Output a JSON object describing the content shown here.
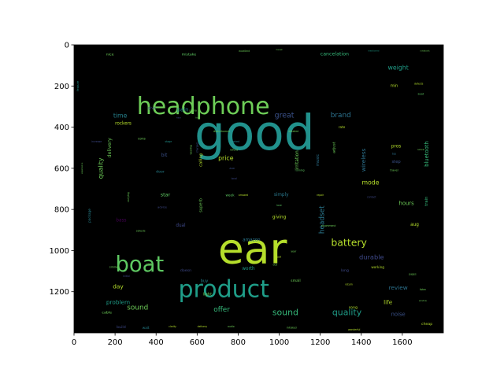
{
  "chart_data": {
    "type": "wordcloud",
    "x_ticks": [
      0,
      200,
      400,
      600,
      800,
      1000,
      1200,
      1400,
      1600
    ],
    "y_ticks": [
      0,
      200,
      400,
      600,
      800,
      1000,
      1200
    ],
    "xlim": [
      0,
      1800
    ],
    "ylim": [
      1400,
      0
    ],
    "background": "#000000",
    "words": [
      {
        "text": "good",
        "x": 880,
        "y": 430,
        "size": 235,
        "color": "#21918c"
      },
      {
        "text": "ear",
        "x": 870,
        "y": 990,
        "size": 205,
        "color": "#b5de2b"
      },
      {
        "text": "headphone",
        "x": 630,
        "y": 300,
        "size": 115,
        "color": "#6ece58"
      },
      {
        "text": "product",
        "x": 730,
        "y": 1190,
        "size": 115,
        "color": "#1f9e89"
      },
      {
        "text": "boat",
        "x": 320,
        "y": 1070,
        "size": 105,
        "color": "#5ec962"
      },
      {
        "text": "battery",
        "x": 1340,
        "y": 960,
        "size": 48,
        "color": "#b5de2b"
      },
      {
        "text": "quality",
        "x": 1330,
        "y": 1300,
        "size": 42,
        "color": "#1f9e89"
      },
      {
        "text": "sound",
        "x": 1030,
        "y": 1300,
        "size": 42,
        "color": "#35b779"
      },
      {
        "text": "sound",
        "x": 310,
        "y": 1280,
        "size": 34,
        "color": "#6ece58"
      },
      {
        "text": "offer",
        "x": 720,
        "y": 1290,
        "size": 34,
        "color": "#35b779"
      },
      {
        "text": "great",
        "x": 1025,
        "y": 345,
        "size": 36,
        "color": "#3b528b"
      },
      {
        "text": "brand",
        "x": 1300,
        "y": 345,
        "size": 34,
        "color": "#2c728e"
      },
      {
        "text": "time",
        "x": 225,
        "y": 345,
        "size": 30,
        "color": "#26828e"
      },
      {
        "text": "weight",
        "x": 1580,
        "y": 110,
        "size": 30,
        "color": "#1f9e89"
      },
      {
        "text": "cancelation",
        "x": 1270,
        "y": 45,
        "size": 24,
        "color": "#35b779"
      },
      {
        "text": "durable",
        "x": 1450,
        "y": 1030,
        "size": 32,
        "color": "#3e4989"
      },
      {
        "text": "headset",
        "x": 1210,
        "y": 850,
        "size": 34,
        "color": "#2a788e",
        "rotate": -90
      },
      {
        "text": "quality",
        "x": 130,
        "y": 600,
        "size": 30,
        "color": "#6ece58",
        "rotate": -90
      },
      {
        "text": "price",
        "x": 740,
        "y": 550,
        "size": 30,
        "color": "#b5de2b"
      },
      {
        "text": "mode",
        "x": 1445,
        "y": 670,
        "size": 30,
        "color": "#b5de2b"
      },
      {
        "text": "wireless",
        "x": 1410,
        "y": 560,
        "size": 28,
        "color": "#2c728e",
        "rotate": -90
      },
      {
        "text": "bluetooth",
        "x": 1720,
        "y": 530,
        "size": 26,
        "color": "#35b779",
        "rotate": -90
      },
      {
        "text": "day",
        "x": 215,
        "y": 1175,
        "size": 28,
        "color": "#b5de2b"
      },
      {
        "text": "problem",
        "x": 215,
        "y": 1250,
        "size": 28,
        "color": "#1f9e89"
      },
      {
        "text": "review",
        "x": 1580,
        "y": 1180,
        "size": 28,
        "color": "#2c728e"
      },
      {
        "text": "life",
        "x": 1530,
        "y": 1250,
        "size": 28,
        "color": "#b5de2b"
      },
      {
        "text": "noise",
        "x": 1580,
        "y": 1310,
        "size": 26,
        "color": "#3b528b"
      },
      {
        "text": "hours",
        "x": 1620,
        "y": 770,
        "size": 26,
        "color": "#6ece58"
      },
      {
        "text": "amazon",
        "x": 865,
        "y": 950,
        "size": 22,
        "color": "#2a788e"
      },
      {
        "text": "pain",
        "x": 530,
        "y": 315,
        "size": 26,
        "color": "#26828e"
      },
      {
        "text": "delivery",
        "x": 175,
        "y": 500,
        "size": 24,
        "color": "#6ece58",
        "rotate": -90
      },
      {
        "text": "rockers",
        "x": 240,
        "y": 385,
        "size": 22,
        "color": "#b5de2b"
      },
      {
        "text": "star",
        "x": 445,
        "y": 730,
        "size": 24,
        "color": "#5ec962"
      },
      {
        "text": "bit",
        "x": 440,
        "y": 540,
        "size": 22,
        "color": "#3b528b"
      },
      {
        "text": "bass",
        "x": 230,
        "y": 855,
        "size": 22,
        "color": "#440154"
      },
      {
        "text": "dual",
        "x": 520,
        "y": 880,
        "size": 22,
        "color": "#3e4989"
      },
      {
        "text": "worth",
        "x": 850,
        "y": 1090,
        "size": 22,
        "color": "#1f9e89"
      },
      {
        "text": "giving",
        "x": 1000,
        "y": 840,
        "size": 22,
        "color": "#b5de2b"
      },
      {
        "text": "simply",
        "x": 1010,
        "y": 730,
        "size": 22,
        "color": "#2a788e"
      },
      {
        "text": "irritation",
        "x": 1090,
        "y": 560,
        "size": 22,
        "color": "#6ece58",
        "rotate": -90
      },
      {
        "text": "music",
        "x": 1190,
        "y": 560,
        "size": 20,
        "color": "#2c728e",
        "rotate": -90
      },
      {
        "text": "pros",
        "x": 1570,
        "y": 495,
        "size": 22,
        "color": "#b5de2b"
      },
      {
        "text": "step",
        "x": 1570,
        "y": 570,
        "size": 20,
        "color": "#3b528b"
      },
      {
        "text": "train",
        "x": 1720,
        "y": 760,
        "size": 20,
        "color": "#35b779",
        "rotate": -90
      },
      {
        "text": "aug",
        "x": 1660,
        "y": 875,
        "size": 22,
        "color": "#b5de2b"
      },
      {
        "text": "mistake",
        "x": 560,
        "y": 50,
        "size": 18,
        "color": "#5ec962"
      },
      {
        "text": "nice",
        "x": 175,
        "y": 50,
        "size": 18,
        "color": "#6ece58"
      },
      {
        "text": "min",
        "x": 1560,
        "y": 200,
        "size": 20,
        "color": "#b5de2b"
      },
      {
        "text": "calling",
        "x": 620,
        "y": 560,
        "size": 20,
        "color": "#b5de2b",
        "rotate": -90
      },
      {
        "text": "superb",
        "x": 620,
        "y": 780,
        "size": 20,
        "color": "#6ece58",
        "rotate": -90
      },
      {
        "text": "light",
        "x": 650,
        "y": 1215,
        "size": 20,
        "color": "#6ece58"
      },
      {
        "text": "buy",
        "x": 635,
        "y": 1150,
        "size": 20,
        "color": "#26828e"
      },
      {
        "text": "doesn",
        "x": 545,
        "y": 1100,
        "size": 18,
        "color": "#3e4989"
      },
      {
        "text": "door",
        "x": 420,
        "y": 620,
        "size": 18,
        "color": "#26828e"
      },
      {
        "text": "give",
        "x": 380,
        "y": 310,
        "size": 18,
        "color": "#3e4989"
      },
      {
        "text": "cons",
        "x": 330,
        "y": 455,
        "size": 16,
        "color": "#6ece58"
      },
      {
        "text": "package",
        "x": 75,
        "y": 830,
        "size": 16,
        "color": "#26828e",
        "rotate": -90
      },
      {
        "text": "feature",
        "x": 20,
        "y": 200,
        "size": 14,
        "color": "#21918c",
        "rotate": -90
      },
      {
        "text": "adjust",
        "x": 1270,
        "y": 500,
        "size": 18,
        "color": "#6ece58",
        "rotate": -90
      },
      {
        "text": "rate",
        "x": 1305,
        "y": 400,
        "size": 16,
        "color": "#b5de2b"
      },
      {
        "text": "long",
        "x": 1320,
        "y": 1100,
        "size": 18,
        "color": "#3e4989"
      },
      {
        "text": "working",
        "x": 1480,
        "y": 1080,
        "size": 16,
        "color": "#b5de2b"
      },
      {
        "text": "song",
        "x": 1360,
        "y": 1280,
        "size": 18,
        "color": "#b5de2b"
      },
      {
        "text": "cheap",
        "x": 1720,
        "y": 1360,
        "size": 18,
        "color": "#b5de2b"
      },
      {
        "text": "build",
        "x": 230,
        "y": 1375,
        "size": 18,
        "color": "#3e4989"
      },
      {
        "text": "wait",
        "x": 350,
        "y": 1375,
        "size": 16,
        "color": "#26828e"
      },
      {
        "text": "small",
        "x": 1080,
        "y": 1150,
        "size": 18,
        "color": "#6ece58"
      },
      {
        "text": "cable",
        "x": 160,
        "y": 1305,
        "size": 18,
        "color": "#6ece58"
      },
      {
        "text": "advice",
        "x": 430,
        "y": 790,
        "size": 14,
        "color": "#3e4989"
      },
      {
        "text": "week",
        "x": 760,
        "y": 730,
        "size": 16,
        "color": "#5ec962"
      },
      {
        "text": "disturbance",
        "x": 720,
        "y": 420,
        "size": 14,
        "color": "#6ece58"
      },
      {
        "text": "detailed",
        "x": 1070,
        "y": 420,
        "size": 12,
        "color": "#6ece58"
      },
      {
        "text": "excellent",
        "x": 830,
        "y": 30,
        "size": 12,
        "color": "#6ece58"
      },
      {
        "text": "mentioned",
        "x": 1460,
        "y": 30,
        "size": 10,
        "color": "#1f9e89"
      },
      {
        "text": "notebook",
        "x": 1710,
        "y": 30,
        "size": 10,
        "color": "#6ece58"
      },
      {
        "text": "seat",
        "x": 1690,
        "y": 240,
        "size": 14,
        "color": "#5ec962"
      },
      {
        "text": "defects",
        "x": 1680,
        "y": 190,
        "size": 12,
        "color": "#b5de2b"
      },
      {
        "text": "aux",
        "x": 770,
        "y": 600,
        "size": 14,
        "color": "#3b528b"
      },
      {
        "text": "refund",
        "x": 780,
        "y": 510,
        "size": 12,
        "color": "#6ece58"
      },
      {
        "text": "wired",
        "x": 790,
        "y": 470,
        "size": 12,
        "color": "#26828e"
      },
      {
        "text": "local",
        "x": 780,
        "y": 650,
        "size": 12,
        "color": "#3e4989"
      },
      {
        "text": "stage",
        "x": 460,
        "y": 470,
        "size": 12,
        "color": "#21918c"
      },
      {
        "text": "charged",
        "x": 600,
        "y": 500,
        "size": 12,
        "color": "#3b528b",
        "rotate": -90
      },
      {
        "text": "wearing",
        "x": 570,
        "y": 510,
        "size": 12,
        "color": "#6ece58",
        "rotate": -90
      },
      {
        "text": "amazed",
        "x": 825,
        "y": 730,
        "size": 12,
        "color": "#b5de2b"
      },
      {
        "text": "love",
        "x": 1000,
        "y": 780,
        "size": 12,
        "color": "#5ec962"
      },
      {
        "text": "repair",
        "x": 1200,
        "y": 730,
        "size": 12,
        "color": "#b5de2b"
      },
      {
        "text": "contact",
        "x": 1450,
        "y": 740,
        "size": 12,
        "color": "#3e4989"
      },
      {
        "text": "recommend",
        "x": 1240,
        "y": 880,
        "size": 12,
        "color": "#6ece58"
      },
      {
        "text": "running",
        "x": 1100,
        "y": 610,
        "size": 12,
        "color": "#5ec962"
      },
      {
        "text": "travel",
        "x": 1560,
        "y": 610,
        "size": 14,
        "color": "#6ece58"
      },
      {
        "text": "top",
        "x": 1560,
        "y": 530,
        "size": 12,
        "color": "#2c728e"
      },
      {
        "text": "collects",
        "x": 325,
        "y": 905,
        "size": 12,
        "color": "#6ece58"
      },
      {
        "text": "carrying",
        "x": 265,
        "y": 740,
        "size": 12,
        "color": "#6ece58",
        "rotate": -90
      },
      {
        "text": "similar",
        "x": 195,
        "y": 1080,
        "size": 14,
        "color": "#6ece58"
      },
      {
        "text": "cost",
        "x": 365,
        "y": 1065,
        "size": 12,
        "color": "#6ece58"
      },
      {
        "text": "initial",
        "x": 255,
        "y": 1125,
        "size": 12,
        "color": "#3e4989"
      },
      {
        "text": "initiated",
        "x": 1060,
        "y": 1375,
        "size": 12,
        "color": "#6ece58"
      },
      {
        "text": "delivery",
        "x": 625,
        "y": 1370,
        "size": 12,
        "color": "#b5de2b"
      },
      {
        "text": "clarity",
        "x": 480,
        "y": 1370,
        "size": 12,
        "color": "#b5de2b"
      },
      {
        "text": "audio",
        "x": 765,
        "y": 1370,
        "size": 12,
        "color": "#6ece58"
      },
      {
        "text": "wonderful",
        "x": 1365,
        "y": 1385,
        "size": 12,
        "color": "#b5de2b"
      },
      {
        "text": "return",
        "x": 1340,
        "y": 1165,
        "size": 12,
        "color": "#b5de2b"
      },
      {
        "text": "pages",
        "x": 1650,
        "y": 1115,
        "size": 12,
        "color": "#6ece58"
      },
      {
        "text": "listen",
        "x": 1700,
        "y": 1190,
        "size": 12,
        "color": "#6ece58"
      },
      {
        "text": "window",
        "x": 1700,
        "y": 1245,
        "size": 10,
        "color": "#6ece58"
      },
      {
        "text": "dcd",
        "x": 980,
        "y": 1070,
        "size": 12,
        "color": "#6ece58"
      },
      {
        "text": "cead",
        "x": 995,
        "y": 1030,
        "size": 12,
        "color": "#b5de2b"
      },
      {
        "text": "year",
        "x": 1070,
        "y": 1005,
        "size": 12,
        "color": "#6ece58"
      },
      {
        "text": "pakka",
        "x": 580,
        "y": 320,
        "size": 12,
        "color": "#6ece58"
      },
      {
        "text": "increase",
        "x": 110,
        "y": 470,
        "size": 12,
        "color": "#3e4989"
      },
      {
        "text": "hear",
        "x": 510,
        "y": 355,
        "size": 10,
        "color": "#3e4989"
      },
      {
        "text": "hrs",
        "x": 600,
        "y": 355,
        "size": 10,
        "color": "#6ece58"
      },
      {
        "text": "honest",
        "x": 1000,
        "y": 25,
        "size": 9,
        "color": "#6ece58"
      },
      {
        "text": "experience",
        "x": 40,
        "y": 600,
        "size": 10,
        "color": "#6ece58",
        "rotate": -90
      },
      {
        "text": "natural",
        "x": 1690,
        "y": 510,
        "size": 10,
        "color": "#6ece58"
      }
    ]
  }
}
